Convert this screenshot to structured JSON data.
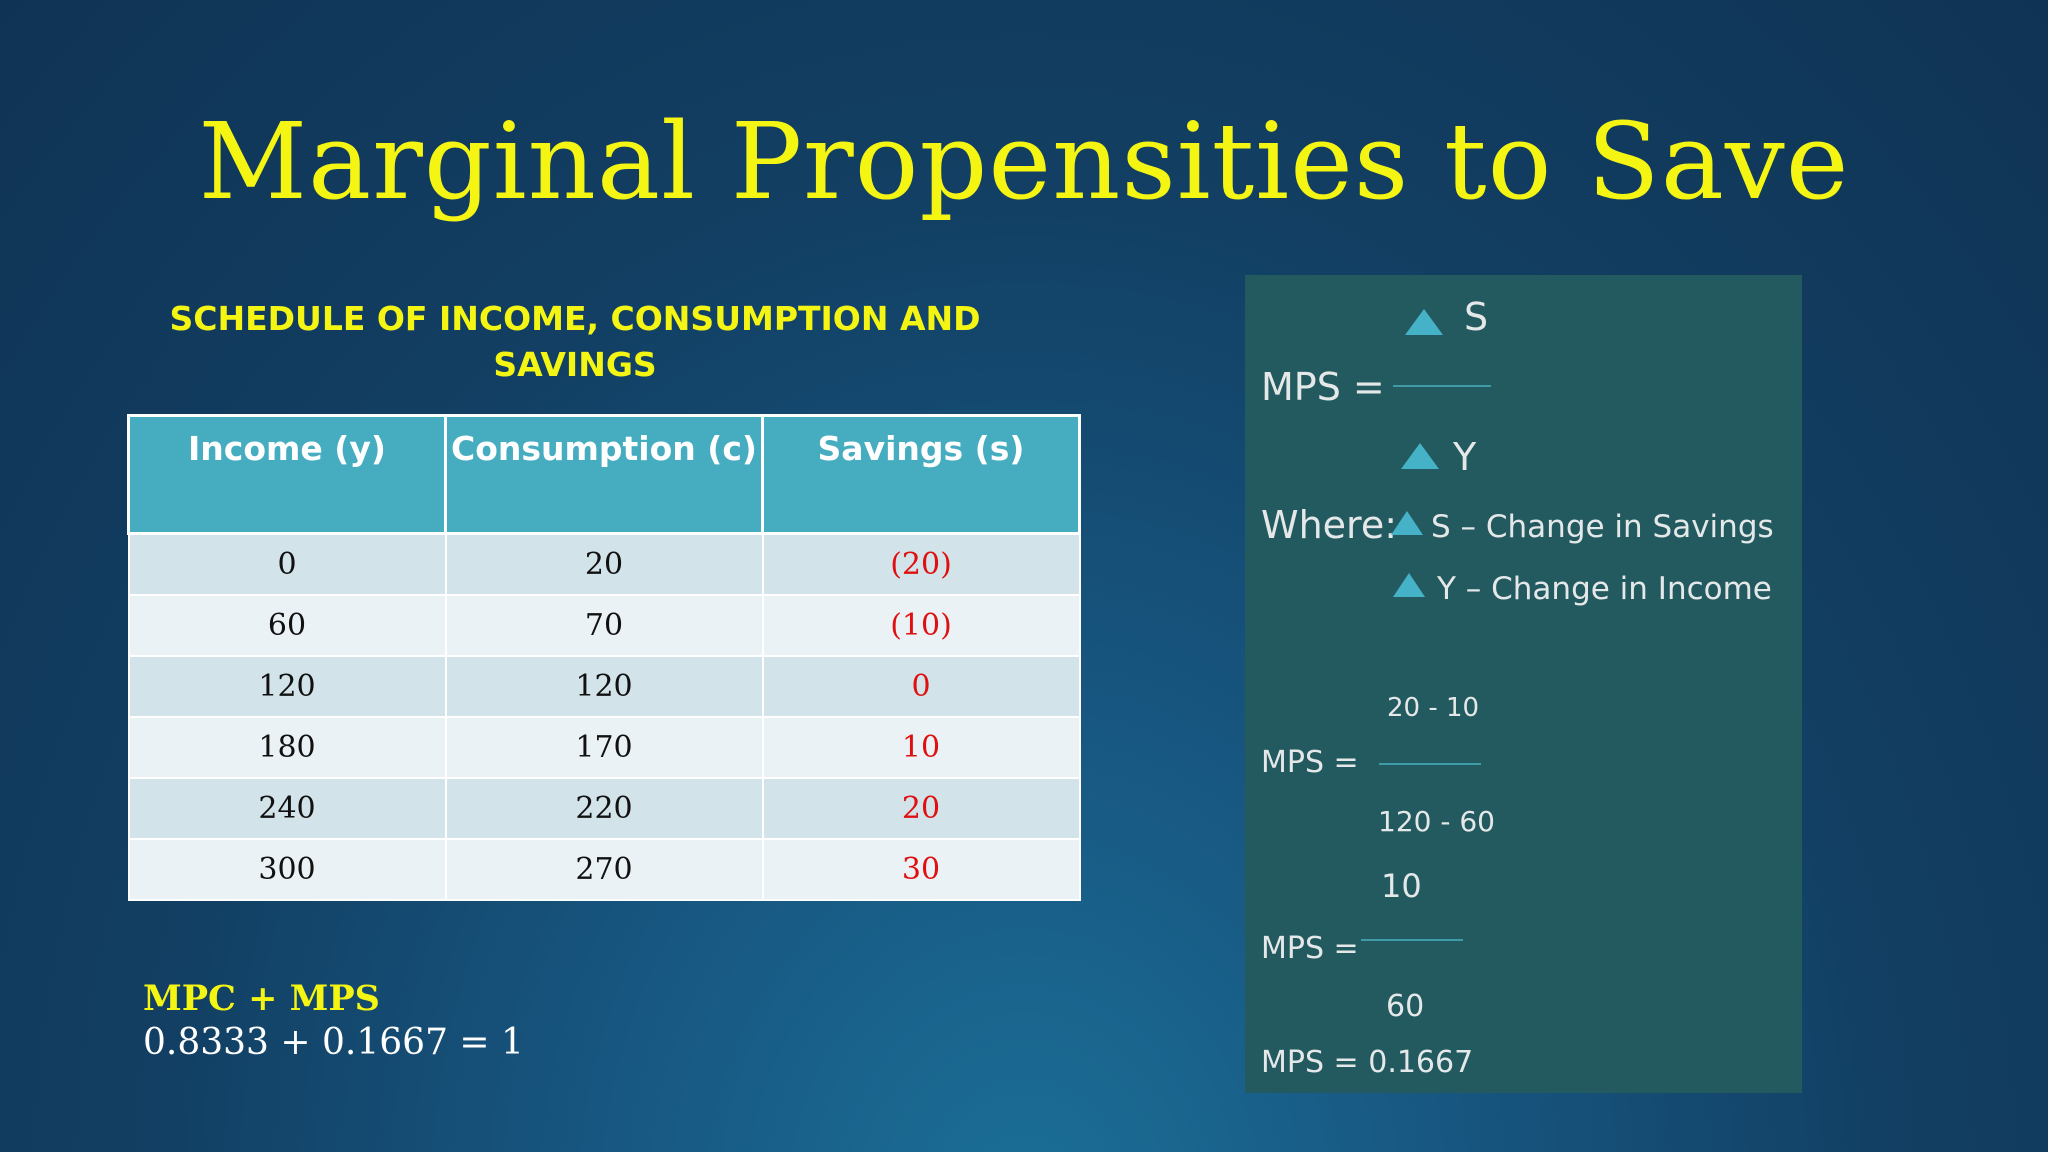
{
  "slide": {
    "title": "Marginal Propensities to Save",
    "subtitle_line1": "SCHEDULE OF INCOME, CONSUMPTION AND",
    "subtitle_line2": "SAVINGS"
  },
  "table": {
    "headers": [
      "Income (y)",
      "Consumption (c)",
      "Savings (s)"
    ],
    "rows": [
      [
        "0",
        "20",
        "(20)"
      ],
      [
        "60",
        "70",
        "(10)"
      ],
      [
        "120",
        "120",
        "0"
      ],
      [
        "180",
        "170",
        "10"
      ],
      [
        "240",
        "220",
        "20"
      ],
      [
        "300",
        "270",
        "30"
      ]
    ],
    "savings_color": "#e01010",
    "header_color": "#46adc0"
  },
  "mpc": {
    "label": "MPC + MPS",
    "equation": "0.8333 + 0.1667 = 1"
  },
  "panel": {
    "formula": {
      "lhs": "MPS =",
      "numerator": "S",
      "denominator": "Y"
    },
    "where_label": "Where:",
    "defs": [
      "S – Change in Savings",
      "Y – Change in Income"
    ],
    "calc1": {
      "lhs": "MPS =",
      "numerator": "20 - 10",
      "denominator": "120 - 60"
    },
    "calc2": {
      "lhs": "MPS =",
      "numerator": "10",
      "denominator": "60"
    },
    "result": "MPS = 0.1667",
    "triangle_icon_color": "#45b2c8",
    "background": "#235a60"
  }
}
